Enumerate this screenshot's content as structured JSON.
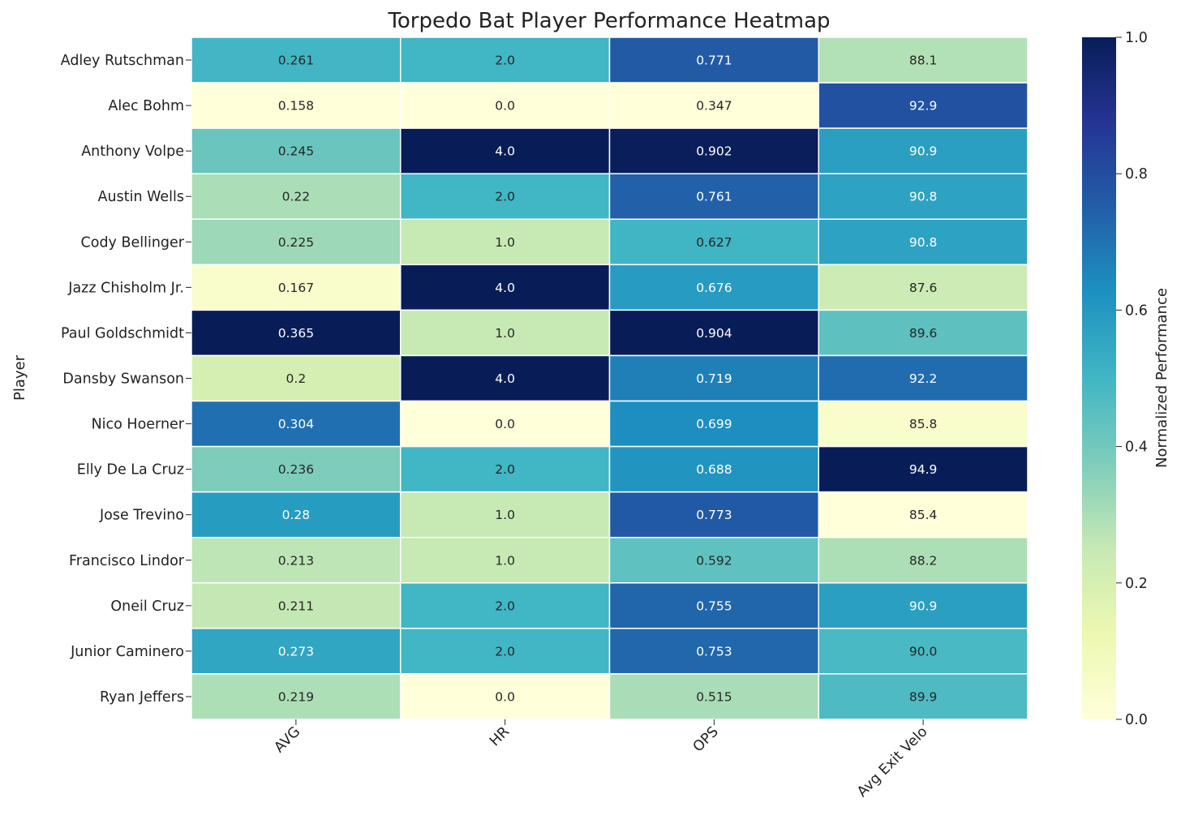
{
  "chart_data": {
    "type": "heatmap",
    "title": "Torpedo Bat Player Performance Heatmap",
    "ylabel": "Player",
    "xlabel": "",
    "colorbar_label": "Normalized Performance",
    "colorbar_ticks": [
      "0.0",
      "0.2",
      "0.4",
      "0.6",
      "0.8",
      "1.0"
    ],
    "colorbar_range": [
      0,
      1
    ],
    "colormap": "YlGnBu",
    "columns": [
      "AVG",
      "HR",
      "OPS",
      "Avg Exit Velo"
    ],
    "rows": [
      "Adley Rutschman",
      "Alec Bohm",
      "Anthony Volpe",
      "Austin Wells",
      "Cody Bellinger",
      "Jazz Chisholm Jr.",
      "Paul Goldschmidt",
      "Dansby Swanson",
      "Nico Hoerner",
      "Elly De La Cruz",
      "Jose Trevino",
      "Francisco Lindor",
      "Oneil Cruz",
      "Junior Caminero",
      "Ryan Jeffers"
    ],
    "values": [
      [
        "0.261",
        "2.0",
        "0.771",
        "88.1"
      ],
      [
        "0.158",
        "0.0",
        "0.347",
        "92.9"
      ],
      [
        "0.245",
        "4.0",
        "0.902",
        "90.9"
      ],
      [
        "0.22",
        "2.0",
        "0.761",
        "90.8"
      ],
      [
        "0.225",
        "1.0",
        "0.627",
        "90.8"
      ],
      [
        "0.167",
        "4.0",
        "0.676",
        "87.6"
      ],
      [
        "0.365",
        "1.0",
        "0.904",
        "89.6"
      ],
      [
        "0.2",
        "4.0",
        "0.719",
        "92.2"
      ],
      [
        "0.304",
        "0.0",
        "0.699",
        "85.8"
      ],
      [
        "0.236",
        "2.0",
        "0.688",
        "94.9"
      ],
      [
        "0.28",
        "1.0",
        "0.773",
        "85.4"
      ],
      [
        "0.213",
        "1.0",
        "0.592",
        "88.2"
      ],
      [
        "0.211",
        "2.0",
        "0.755",
        "90.9"
      ],
      [
        "0.273",
        "2.0",
        "0.753",
        "90.0"
      ],
      [
        "0.219",
        "0.0",
        "0.515",
        "89.9"
      ]
    ]
  }
}
